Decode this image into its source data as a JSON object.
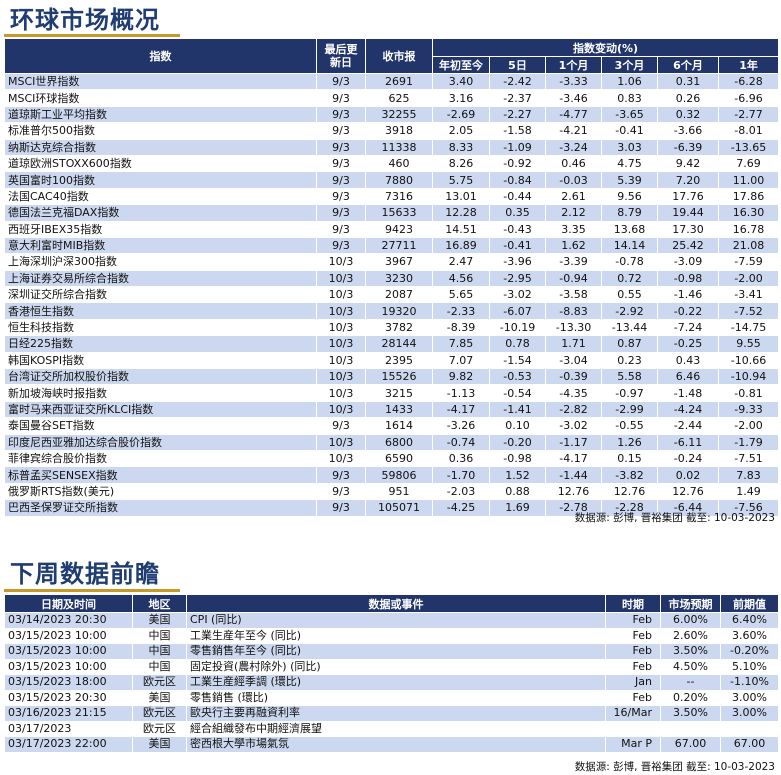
{
  "market": {
    "title": "环球市场概况",
    "headers": {
      "index": "指数",
      "updated": "最后更新日",
      "close": "收市报",
      "change_group": "指数变动(%)",
      "ytd": "年初至今",
      "d5": "5日",
      "m1": "1个月",
      "m3": "3个月",
      "m6": "6个月",
      "y1": "1年"
    },
    "rows": [
      {
        "name": "MSCI世界指数",
        "updated": "9/3",
        "close": "2691",
        "ytd": "3.40",
        "d5": "-2.42",
        "m1": "-3.33",
        "m3": "1.06",
        "m6": "0.31",
        "y1": "-6.28"
      },
      {
        "name": "MSCI环球指数",
        "updated": "9/3",
        "close": "625",
        "ytd": "3.16",
        "d5": "-2.37",
        "m1": "-3.46",
        "m3": "0.83",
        "m6": "0.26",
        "y1": "-6.96"
      },
      {
        "name": "道琼斯工业平均指数",
        "updated": "9/3",
        "close": "32255",
        "ytd": "-2.69",
        "d5": "-2.27",
        "m1": "-4.77",
        "m3": "-3.65",
        "m6": "0.32",
        "y1": "-2.77"
      },
      {
        "name": "标准普尔500指数",
        "updated": "9/3",
        "close": "3918",
        "ytd": "2.05",
        "d5": "-1.58",
        "m1": "-4.21",
        "m3": "-0.41",
        "m6": "-3.66",
        "y1": "-8.01"
      },
      {
        "name": "纳斯达克综合指数",
        "updated": "9/3",
        "close": "11338",
        "ytd": "8.33",
        "d5": "-1.09",
        "m1": "-3.24",
        "m3": "3.03",
        "m6": "-6.39",
        "y1": "-13.65"
      },
      {
        "name": "道琼欧洲STOXX600指数",
        "updated": "9/3",
        "close": "460",
        "ytd": "8.26",
        "d5": "-0.92",
        "m1": "0.46",
        "m3": "4.75",
        "m6": "9.42",
        "y1": "7.69"
      },
      {
        "name": "英国富时100指数",
        "updated": "9/3",
        "close": "7880",
        "ytd": "5.75",
        "d5": "-0.84",
        "m1": "-0.03",
        "m3": "5.39",
        "m6": "7.20",
        "y1": "11.00"
      },
      {
        "name": "法国CAC40指数",
        "updated": "9/3",
        "close": "7316",
        "ytd": "13.01",
        "d5": "-0.44",
        "m1": "2.61",
        "m3": "9.56",
        "m6": "17.76",
        "y1": "17.86"
      },
      {
        "name": "德国法兰克福DAX指数",
        "updated": "9/3",
        "close": "15633",
        "ytd": "12.28",
        "d5": "0.35",
        "m1": "2.12",
        "m3": "8.79",
        "m6": "19.44",
        "y1": "16.30"
      },
      {
        "name": "西班牙IBEX35指数",
        "updated": "9/3",
        "close": "9423",
        "ytd": "14.51",
        "d5": "-0.43",
        "m1": "3.35",
        "m3": "13.68",
        "m6": "17.30",
        "y1": "16.78"
      },
      {
        "name": "意大利富时MIB指数",
        "updated": "9/3",
        "close": "27711",
        "ytd": "16.89",
        "d5": "-0.41",
        "m1": "1.62",
        "m3": "14.14",
        "m6": "25.42",
        "y1": "21.08"
      },
      {
        "name": "上海深圳沪深300指数",
        "updated": "10/3",
        "close": "3967",
        "ytd": "2.47",
        "d5": "-3.96",
        "m1": "-3.39",
        "m3": "-0.78",
        "m6": "-3.09",
        "y1": "-7.59"
      },
      {
        "name": "上海证券交易所综合指数",
        "updated": "10/3",
        "close": "3230",
        "ytd": "4.56",
        "d5": "-2.95",
        "m1": "-0.94",
        "m3": "0.72",
        "m6": "-0.98",
        "y1": "-2.00"
      },
      {
        "name": "深圳证交所综合指数",
        "updated": "10/3",
        "close": "2087",
        "ytd": "5.65",
        "d5": "-3.02",
        "m1": "-3.58",
        "m3": "0.55",
        "m6": "-1.46",
        "y1": "-3.41"
      },
      {
        "name": "香港恒生指数",
        "updated": "10/3",
        "close": "19320",
        "ytd": "-2.33",
        "d5": "-6.07",
        "m1": "-8.83",
        "m3": "-2.92",
        "m6": "-0.22",
        "y1": "-7.52"
      },
      {
        "name": "恒生科技指数",
        "updated": "10/3",
        "close": "3782",
        "ytd": "-8.39",
        "d5": "-10.19",
        "m1": "-13.30",
        "m3": "-13.44",
        "m6": "-7.24",
        "y1": "-14.75"
      },
      {
        "name": "日经225指数",
        "updated": "10/3",
        "close": "28144",
        "ytd": "7.85",
        "d5": "0.78",
        "m1": "1.71",
        "m3": "0.87",
        "m6": "-0.25",
        "y1": "9.55"
      },
      {
        "name": "韩国KOSPI指数",
        "updated": "10/3",
        "close": "2395",
        "ytd": "7.07",
        "d5": "-1.54",
        "m1": "-3.04",
        "m3": "0.23",
        "m6": "0.43",
        "y1": "-10.66"
      },
      {
        "name": "台湾证交所加权股价指数",
        "updated": "10/3",
        "close": "15526",
        "ytd": "9.82",
        "d5": "-0.53",
        "m1": "-0.39",
        "m3": "5.58",
        "m6": "6.46",
        "y1": "-10.94"
      },
      {
        "name": "新加坡海峡时报指数",
        "updated": "10/3",
        "close": "3215",
        "ytd": "-1.13",
        "d5": "-0.54",
        "m1": "-4.35",
        "m3": "-0.97",
        "m6": "-1.48",
        "y1": "-0.81"
      },
      {
        "name": "富时马来西亚证交所KLCI指数",
        "updated": "10/3",
        "close": "1433",
        "ytd": "-4.17",
        "d5": "-1.41",
        "m1": "-2.82",
        "m3": "-2.99",
        "m6": "-4.24",
        "y1": "-9.33"
      },
      {
        "name": "泰国曼谷SET指数",
        "updated": "9/3",
        "close": "1614",
        "ytd": "-3.26",
        "d5": "0.10",
        "m1": "-3.02",
        "m3": "-0.55",
        "m6": "-2.44",
        "y1": "-2.00"
      },
      {
        "name": "印度尼西亚雅加达综合股价指数",
        "updated": "10/3",
        "close": "6800",
        "ytd": "-0.74",
        "d5": "-0.20",
        "m1": "-1.17",
        "m3": "1.26",
        "m6": "-6.11",
        "y1": "-1.79"
      },
      {
        "name": "菲律宾综合股价指数",
        "updated": "10/3",
        "close": "6590",
        "ytd": "0.36",
        "d5": "-0.98",
        "m1": "-4.17",
        "m3": "0.15",
        "m6": "-0.24",
        "y1": "-7.51"
      },
      {
        "name": "标普孟买SENSEX指数",
        "updated": "9/3",
        "close": "59806",
        "ytd": "-1.70",
        "d5": "1.52",
        "m1": "-1.44",
        "m3": "-3.82",
        "m6": "0.02",
        "y1": "7.83"
      },
      {
        "name": "俄罗斯RTS指数(美元)",
        "updated": "9/3",
        "close": "951",
        "ytd": "-2.03",
        "d5": "0.88",
        "m1": "12.76",
        "m3": "12.76",
        "m6": "12.76",
        "y1": "1.49"
      },
      {
        "name": "巴西圣保罗证交所指数",
        "updated": "9/3",
        "close": "105071",
        "ytd": "-4.25",
        "d5": "1.69",
        "m1": "-2.78",
        "m3": "-2.28",
        "m6": "-6.44",
        "y1": "-7.56"
      }
    ],
    "source": "数据源: 彭博, 晋裕集团 截至: 10-03-2023"
  },
  "calendar": {
    "title": "下周数据前瞻",
    "headers": {
      "datetime": "日期及时间",
      "region": "地区",
      "event": "数据或事件",
      "period": "时期",
      "expected": "市场预期",
      "previous": "前期值"
    },
    "rows": [
      {
        "datetime": "03/14/2023 20:30",
        "region": "美国",
        "event": "CPI (同比)",
        "period": "Feb",
        "expected": "6.00%",
        "previous": "6.40%"
      },
      {
        "datetime": "03/15/2023 10:00",
        "region": "中国",
        "event": "工業生産年至今 (同比)",
        "period": "Feb",
        "expected": "2.60%",
        "previous": "3.60%"
      },
      {
        "datetime": "03/15/2023 10:00",
        "region": "中国",
        "event": "零售銷售年至今 (同比)",
        "period": "Feb",
        "expected": "3.50%",
        "previous": "-0.20%"
      },
      {
        "datetime": "03/15/2023 10:00",
        "region": "中国",
        "event": "固定投資(農村除外) (同比)",
        "period": "Feb",
        "expected": "4.50%",
        "previous": "5.10%"
      },
      {
        "datetime": "03/15/2023 18:00",
        "region": "欧元区",
        "event": "工業生産經季調 (環比)",
        "period": "Jan",
        "expected": "--",
        "previous": "-1.10%"
      },
      {
        "datetime": "03/15/2023 20:30",
        "region": "美国",
        "event": "零售銷售 (環比)",
        "period": "Feb",
        "expected": "0.20%",
        "previous": "3.00%"
      },
      {
        "datetime": "03/16/2023 21:15",
        "region": "欧元区",
        "event": "歐央行主要再融資利率",
        "period": "16/Mar",
        "expected": "3.50%",
        "previous": "3.00%"
      },
      {
        "datetime": "03/17/2023",
        "region": "欧元区",
        "event": "經合組織發布中期經濟展望",
        "period": "",
        "expected": "",
        "previous": ""
      },
      {
        "datetime": "03/17/2023 22:00",
        "region": "美国",
        "event": "密西根大學市場氣氛",
        "period": "Mar P",
        "expected": "67.00",
        "previous": "67.00"
      }
    ],
    "source": "数据源: 彭博, 晋裕集团 截至: 10-03-2023"
  }
}
